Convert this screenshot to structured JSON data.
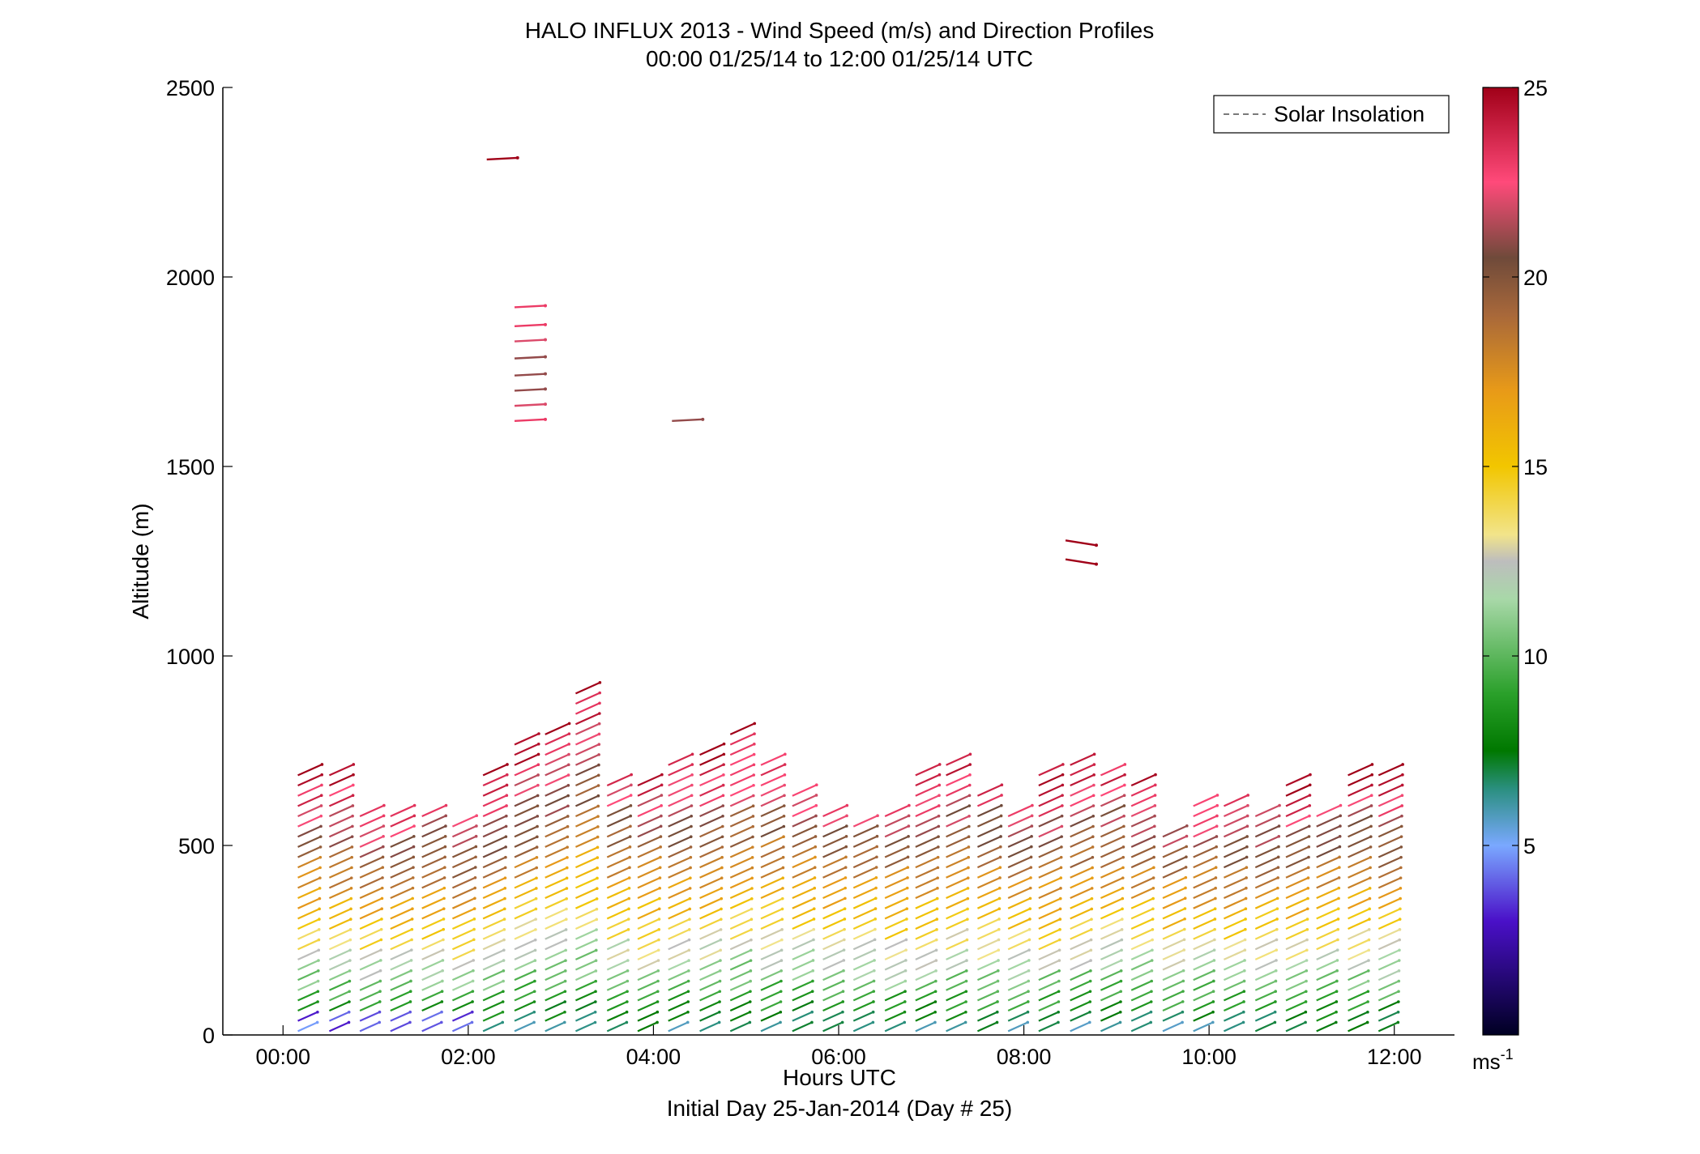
{
  "chart_data": {
    "type": "wind-barb-profile",
    "title": "HALO INFLUX 2013 - Wind Speed (m/s) and Direction Profiles",
    "subtitle": "00:00 01/25/14 to 12:00 01/25/14  UTC",
    "xlabel": "Hours UTC",
    "xlabel2": "Initial Day 25-Jan-2014 (Day # 25)",
    "ylabel": "Altitude (m)",
    "xlim": [
      -0.65,
      12.65
    ],
    "ylim": [
      0,
      2500
    ],
    "x_ticks": [
      0,
      2,
      4,
      6,
      8,
      10,
      12
    ],
    "x_tick_labels": [
      "00:00",
      "02:00",
      "04:00",
      "06:00",
      "08:00",
      "10:00",
      "12:00"
    ],
    "y_ticks": [
      0,
      500,
      1000,
      1500,
      2000,
      2500
    ],
    "y_tick_labels": [
      "0",
      "500",
      "1000",
      "1500",
      "2000",
      "2500"
    ],
    "legend": {
      "position": "top-right",
      "entries": [
        "Solar Insolation"
      ]
    },
    "colorbar": {
      "range": [
        0,
        25
      ],
      "ticks": [
        5,
        10,
        15,
        20,
        25
      ],
      "tick_labels": [
        "5",
        "10",
        "15",
        "20",
        "25"
      ],
      "unit": "ms",
      "unit_exp": "-1",
      "stops": [
        {
          "v": 0,
          "c": "#000022"
        },
        {
          "v": 3,
          "c": "#4a10c8"
        },
        {
          "v": 5,
          "c": "#7aa8ff"
        },
        {
          "v": 6.5,
          "c": "#2a8f7f"
        },
        {
          "v": 7.5,
          "c": "#007800"
        },
        {
          "v": 9,
          "c": "#2aa02a"
        },
        {
          "v": 11.5,
          "c": "#a8d8a8"
        },
        {
          "v": 12.5,
          "c": "#bdbdbd"
        },
        {
          "v": 13.2,
          "c": "#f2e48a"
        },
        {
          "v": 15,
          "c": "#f2c600"
        },
        {
          "v": 17,
          "c": "#e89a18"
        },
        {
          "v": 19,
          "c": "#a8683a"
        },
        {
          "v": 20.5,
          "c": "#6f4a3a"
        },
        {
          "v": 22.5,
          "c": "#ff4a7a"
        },
        {
          "v": 25,
          "c": "#a00018"
        }
      ]
    },
    "profiles": [
      {
        "t": 0.0,
        "tops": []
      },
      {
        "t": 0.33,
        "top": 700,
        "speed_top": 25
      },
      {
        "t": 0.67,
        "top": 700,
        "speed_top": 25
      },
      {
        "t": 1.0,
        "top": 600,
        "speed_top": 24
      },
      {
        "t": 1.33,
        "top": 600,
        "speed_top": 24
      },
      {
        "t": 1.67,
        "top": 600,
        "speed_top": 23
      },
      {
        "t": 2.0,
        "top": 570,
        "speed_top": 23
      },
      {
        "t": 2.33,
        "top": 700,
        "speed_top": 25
      },
      {
        "t": 2.67,
        "top": 770,
        "speed_top": 25
      },
      {
        "t": 3.0,
        "top": 810,
        "speed_top": 25
      },
      {
        "t": 3.33,
        "top": 910,
        "speed_top": 25
      },
      {
        "t": 3.67,
        "top": 670,
        "speed_top": 23
      },
      {
        "t": 4.0,
        "top": 670,
        "speed_top": 24
      },
      {
        "t": 4.33,
        "top": 730,
        "speed_top": 25
      },
      {
        "t": 4.67,
        "top": 740,
        "speed_top": 25
      },
      {
        "t": 5.0,
        "top": 800,
        "speed_top": 25
      },
      {
        "t": 5.33,
        "top": 730,
        "speed_top": 24
      },
      {
        "t": 5.67,
        "top": 640,
        "speed_top": 23
      },
      {
        "t": 6.0,
        "top": 600,
        "speed_top": 23
      },
      {
        "t": 6.33,
        "top": 570,
        "speed_top": 22
      },
      {
        "t": 6.67,
        "top": 600,
        "speed_top": 23
      },
      {
        "t": 7.0,
        "top": 700,
        "speed_top": 25
      },
      {
        "t": 7.33,
        "top": 730,
        "speed_top": 25
      },
      {
        "t": 7.67,
        "top": 640,
        "speed_top": 23
      },
      {
        "t": 8.0,
        "top": 600,
        "speed_top": 23
      },
      {
        "t": 8.33,
        "top": 690,
        "speed_top": 25
      },
      {
        "t": 8.67,
        "top": 730,
        "speed_top": 25
      },
      {
        "t": 9.0,
        "top": 700,
        "speed_top": 24
      },
      {
        "t": 9.33,
        "top": 670,
        "speed_top": 24
      },
      {
        "t": 9.67,
        "top": 540,
        "speed_top": 22
      },
      {
        "t": 10.0,
        "top": 630,
        "speed_top": 24
      },
      {
        "t": 10.33,
        "top": 630,
        "speed_top": 24
      },
      {
        "t": 10.67,
        "top": 600,
        "speed_top": 23
      },
      {
        "t": 11.0,
        "top": 660,
        "speed_top": 25
      },
      {
        "t": 11.33,
        "top": 600,
        "speed_top": 23
      },
      {
        "t": 11.67,
        "top": 700,
        "speed_top": 25
      },
      {
        "t": 12.0,
        "top": 700,
        "speed_top": 25
      }
    ],
    "isolated_vectors": [
      {
        "t": 2.2,
        "alt": 2310,
        "speed": 25
      },
      {
        "t": 2.5,
        "alt": 1920,
        "speed": 23
      },
      {
        "t": 2.5,
        "alt": 1870,
        "speed": 23
      },
      {
        "t": 2.5,
        "alt": 1830,
        "speed": 22
      },
      {
        "t": 2.5,
        "alt": 1785,
        "speed": 21
      },
      {
        "t": 2.5,
        "alt": 1740,
        "speed": 21
      },
      {
        "t": 2.5,
        "alt": 1700,
        "speed": 21
      },
      {
        "t": 2.5,
        "alt": 1660,
        "speed": 22
      },
      {
        "t": 2.5,
        "alt": 1620,
        "speed": 23
      },
      {
        "t": 4.2,
        "alt": 1620,
        "speed": 21
      },
      {
        "t": 8.45,
        "alt": 1305,
        "speed": 25
      },
      {
        "t": 8.45,
        "alt": 1255,
        "speed": 25
      }
    ]
  }
}
